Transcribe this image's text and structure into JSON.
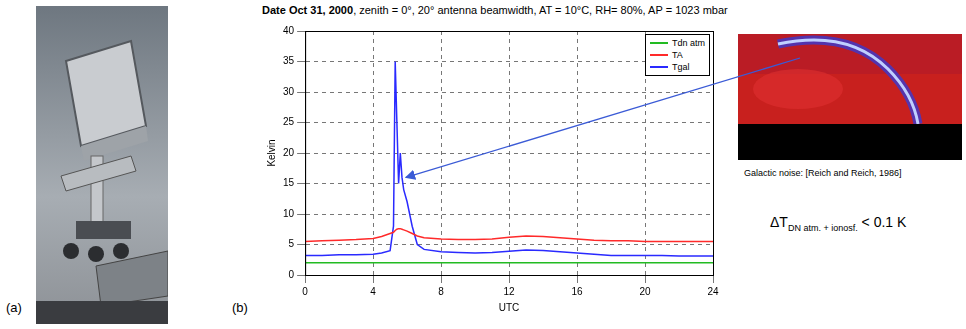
{
  "panels": {
    "a": {
      "label": "(a)"
    },
    "b": {
      "label": "(b)"
    }
  },
  "chart_data": {
    "type": "line",
    "title": "Date Oct 31, 2000, zenith = 0°, 20° antenna beamwidth, AT = 10°C, RH= 80%, AP = 1023 mbar",
    "x_label": "UTC",
    "y_label": "Kelvin",
    "x": [
      0,
      1,
      2,
      3,
      4,
      4.5,
      5,
      5.2,
      5.3,
      5.4,
      5.5,
      5.6,
      5.7,
      5.8,
      6,
      6.3,
      6.6,
      7,
      8,
      9,
      10,
      11,
      12,
      13,
      14,
      15,
      16,
      17,
      18,
      19,
      20,
      21,
      22,
      23,
      24
    ],
    "series": [
      {
        "name": "Tdn atm",
        "color": "#22bb22",
        "values": [
          2,
          2,
          2,
          2,
          2,
          2,
          2,
          2,
          2,
          2,
          2,
          2,
          2,
          2,
          2,
          2,
          2,
          2,
          2,
          2,
          2,
          2,
          2,
          2,
          2,
          2,
          2,
          2,
          2,
          2,
          2,
          2,
          2,
          2,
          2
        ]
      },
      {
        "name": "TA",
        "color": "#ff2a2a",
        "values": [
          5.5,
          5.6,
          5.7,
          5.8,
          6,
          6.3,
          6.8,
          7,
          7.3,
          7.5,
          7.6,
          7.6,
          7.5,
          7.4,
          7.2,
          6.8,
          6.4,
          6.1,
          5.9,
          5.8,
          5.8,
          5.9,
          6.2,
          6.4,
          6.3,
          6.1,
          5.9,
          5.7,
          5.6,
          5.6,
          5.5,
          5.5,
          5.5,
          5.5,
          5.5
        ]
      },
      {
        "name": "Tgal",
        "color": "#2a2aff",
        "values": [
          3.2,
          3.2,
          3.3,
          3.3,
          3.4,
          3.6,
          4,
          8,
          35,
          25,
          15,
          20,
          16,
          14,
          12,
          8,
          5,
          4.2,
          3.8,
          3.7,
          3.6,
          3.7,
          3.9,
          4.1,
          4.0,
          3.8,
          3.6,
          3.4,
          3.2,
          3.2,
          3.2,
          3.2,
          3.1,
          3.1,
          3.1
        ]
      }
    ],
    "xlim": [
      0,
      24
    ],
    "xticks": [
      0,
      4,
      8,
      12,
      16,
      20,
      24
    ],
    "ylim": [
      0,
      40
    ],
    "yticks": [
      0,
      5,
      10,
      15,
      20,
      25,
      30,
      35,
      40
    ],
    "grid": true,
    "legend": "upper right"
  },
  "inset": {
    "caption": "Galactic noise: [Reich and Reich, 1986]"
  },
  "annotation": {
    "symbol": "ΔT",
    "subscript": "DN atm. + ionosf.",
    "text": "< 0.1 K"
  }
}
